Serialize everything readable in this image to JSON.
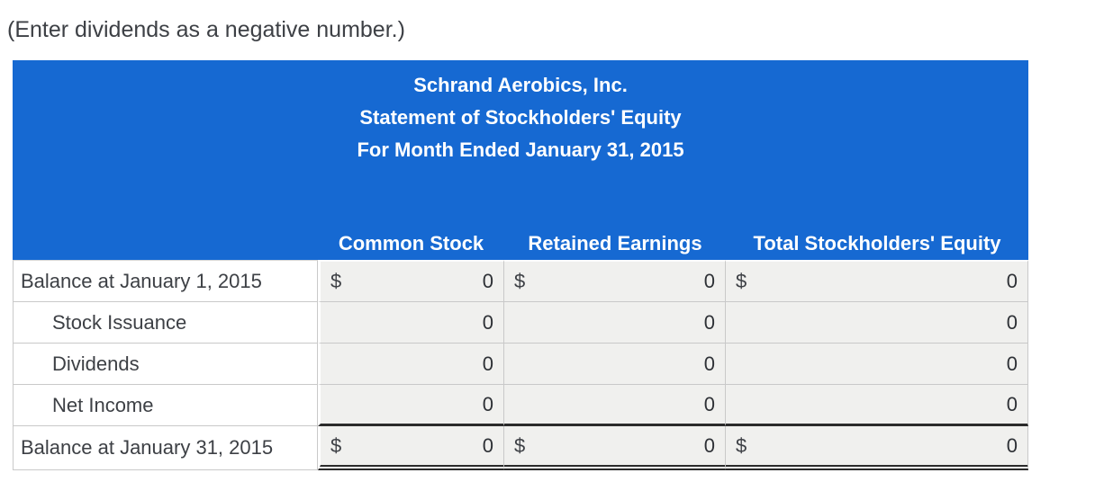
{
  "note": "(Enter dividends as a negative number.)",
  "table": {
    "title_lines": [
      "Schrand Aerobics, Inc.",
      "Statement of Stockholders' Equity",
      "For Month Ended January 31, 2015"
    ],
    "columns": [
      "Common Stock",
      "Retained Earnings",
      "Total Stockholders' Equity"
    ],
    "currency_symbol": "$",
    "rows": [
      {
        "label": "Balance at January 1, 2015",
        "values": [
          "0",
          "0",
          "0"
        ]
      },
      {
        "label": "Stock Issuance",
        "values": [
          "0",
          "0",
          "0"
        ]
      },
      {
        "label": "Dividends",
        "values": [
          "0",
          "0",
          "0"
        ]
      },
      {
        "label": "Net Income",
        "values": [
          "0",
          "0",
          "0"
        ]
      },
      {
        "label": "Balance at January 31, 2015",
        "values": [
          "0",
          "0",
          "0"
        ]
      }
    ],
    "colors": {
      "header_bg": "#1669d2",
      "header_text": "#ffffff",
      "input_cell_bg": "#f0f0ee",
      "border": "#c9c9c9",
      "total_rule": "#2b2b2b",
      "text": "#3d4045"
    }
  }
}
